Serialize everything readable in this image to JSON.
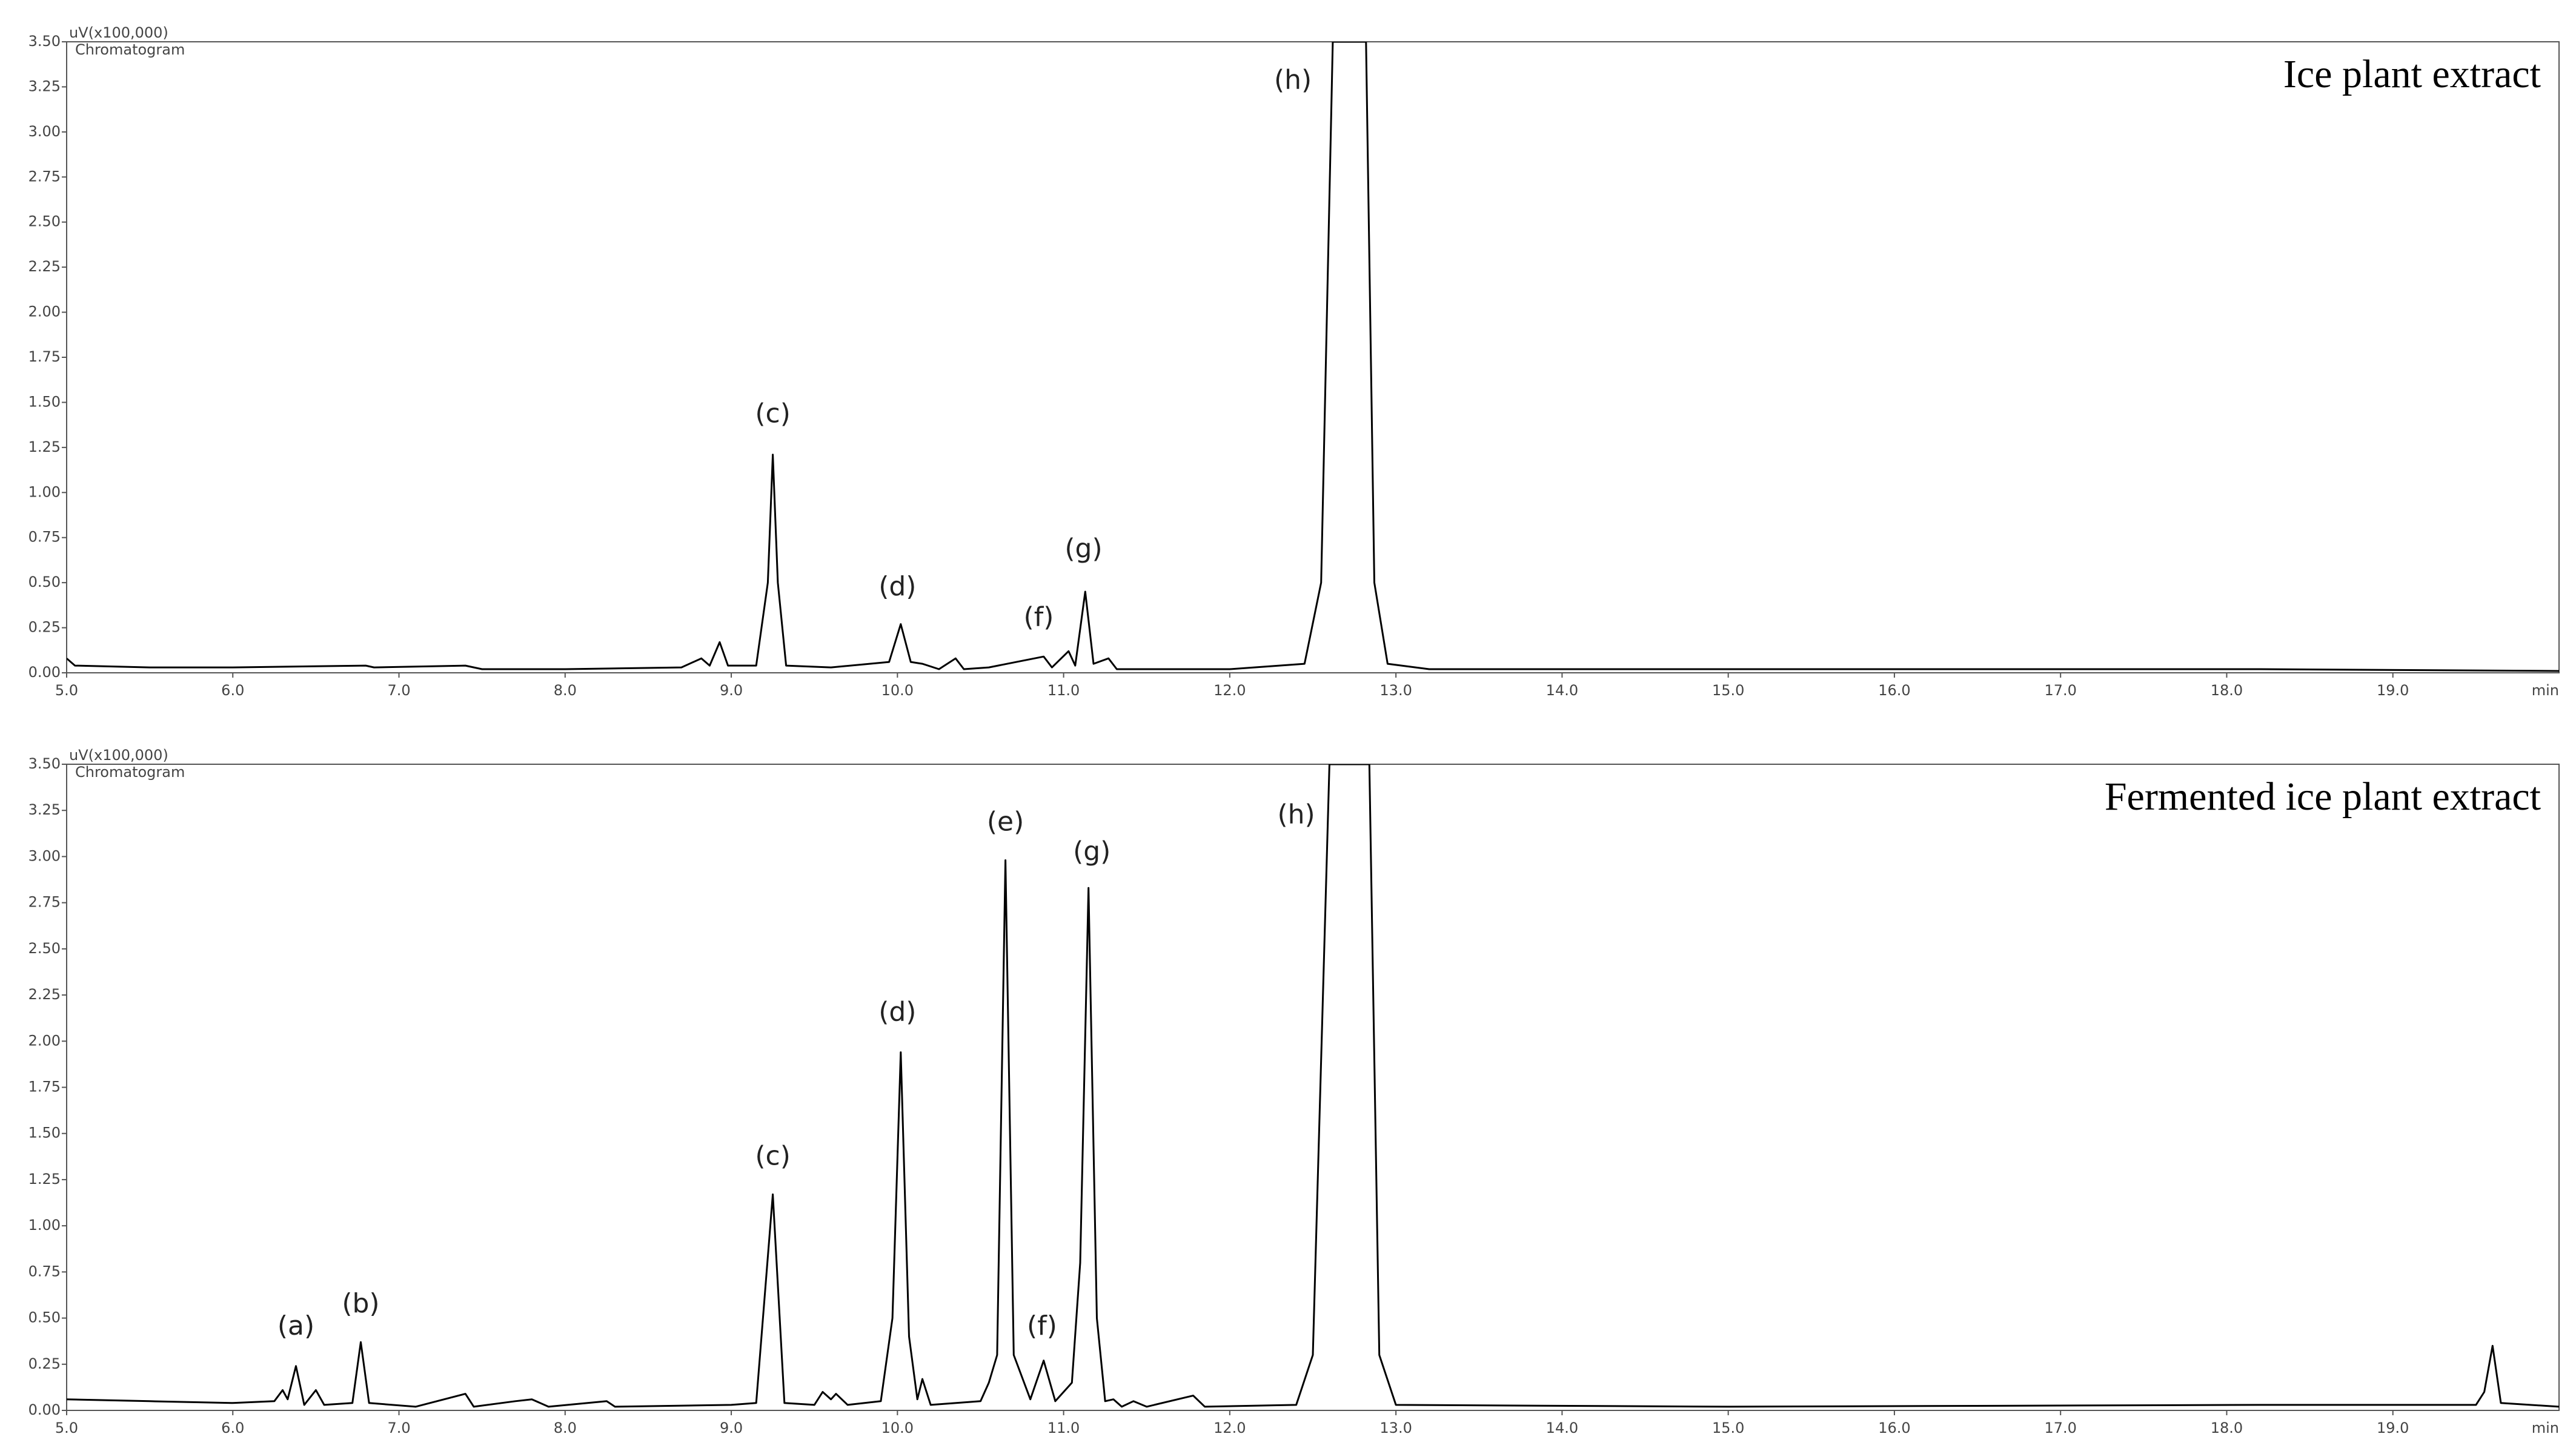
{
  "chart_data": [
    {
      "type": "line",
      "title": "Ice plant extract",
      "ylabel": "uV(x100,000)",
      "subtitle": "Chromatogram",
      "xlabel": "min",
      "color": "#000000",
      "xlim": [
        5,
        20
      ],
      "ylim": [
        0,
        3.5
      ],
      "xticks": [
        {
          "value": 5,
          "label": "5.0"
        },
        {
          "value": 6,
          "label": "6.0"
        },
        {
          "value": 7,
          "label": "7.0"
        },
        {
          "value": 8,
          "label": "8.0"
        },
        {
          "value": 9,
          "label": "9.0"
        },
        {
          "value": 10,
          "label": "10.0"
        },
        {
          "value": 11,
          "label": "11.0"
        },
        {
          "value": 12,
          "label": "12.0"
        },
        {
          "value": 13,
          "label": "13.0"
        },
        {
          "value": 14,
          "label": "14.0"
        },
        {
          "value": 15,
          "label": "15.0"
        },
        {
          "value": 16,
          "label": "16.0"
        },
        {
          "value": 17,
          "label": "17.0"
        },
        {
          "value": 18,
          "label": "18.0"
        },
        {
          "value": 19,
          "label": "19.0"
        }
      ],
      "yticks": [
        {
          "value": 0,
          "label": "0.00"
        },
        {
          "value": 0.25,
          "label": "0.25"
        },
        {
          "value": 0.5,
          "label": "0.50"
        },
        {
          "value": 0.75,
          "label": "0.75"
        },
        {
          "value": 1,
          "label": "1.00"
        },
        {
          "value": 1.25,
          "label": "1.25"
        },
        {
          "value": 1.5,
          "label": "1.50"
        },
        {
          "value": 1.75,
          "label": "1.75"
        },
        {
          "value": 2,
          "label": "2.00"
        },
        {
          "value": 2.25,
          "label": "2.25"
        },
        {
          "value": 2.5,
          "label": "2.50"
        },
        {
          "value": 2.75,
          "label": "2.75"
        },
        {
          "value": 3,
          "label": "3.00"
        },
        {
          "value": 3.25,
          "label": "3.25"
        },
        {
          "value": 3.5,
          "label": "3.50"
        }
      ],
      "x": [
        5.0,
        5.05,
        5.5,
        6.0,
        6.8,
        6.85,
        7.4,
        7.5,
        8.0,
        8.7,
        8.82,
        8.87,
        8.93,
        8.98,
        9.15,
        9.22,
        9.25,
        9.28,
        9.33,
        9.6,
        9.95,
        10.02,
        10.08,
        10.15,
        10.25,
        10.35,
        10.4,
        10.55,
        10.88,
        10.93,
        11.03,
        11.07,
        11.13,
        11.18,
        11.27,
        11.32,
        12.0,
        12.45,
        12.55,
        12.62,
        12.82,
        12.87,
        12.95,
        13.2,
        14.0,
        16.0,
        18.2,
        20.0
      ],
      "values": [
        0.08,
        0.04,
        0.03,
        0.03,
        0.04,
        0.03,
        0.04,
        0.02,
        0.02,
        0.03,
        0.08,
        0.04,
        0.17,
        0.04,
        0.04,
        0.5,
        1.21,
        0.5,
        0.04,
        0.03,
        0.06,
        0.27,
        0.06,
        0.05,
        0.02,
        0.08,
        0.02,
        0.03,
        0.09,
        0.03,
        0.12,
        0.04,
        0.45,
        0.05,
        0.08,
        0.02,
        0.02,
        0.05,
        0.5,
        3.5,
        3.5,
        0.5,
        0.05,
        0.02,
        0.02,
        0.02,
        0.02,
        0.01
      ],
      "annotations": [
        {
          "text": "(c)",
          "x": 9.25,
          "y": 1.43
        },
        {
          "text": "(d)",
          "x": 10.0,
          "y": 0.47
        },
        {
          "text": "(f)",
          "x": 10.85,
          "y": 0.3
        },
        {
          "text": "(g)",
          "x": 11.12,
          "y": 0.68
        },
        {
          "text": "(h)",
          "x": 12.38,
          "y": 3.28
        }
      ]
    },
    {
      "type": "line",
      "title": "Fermented ice plant extract",
      "ylabel": "uV(x100,000)",
      "subtitle": "Chromatogram",
      "xlabel": "min",
      "color": "#000000",
      "xlim": [
        5,
        20
      ],
      "ylim": [
        0,
        3.5
      ],
      "xticks": [
        {
          "value": 5,
          "label": "5.0"
        },
        {
          "value": 6,
          "label": "6.0"
        },
        {
          "value": 7,
          "label": "7.0"
        },
        {
          "value": 8,
          "label": "8.0"
        },
        {
          "value": 9,
          "label": "9.0"
        },
        {
          "value": 10,
          "label": "10.0"
        },
        {
          "value": 11,
          "label": "11.0"
        },
        {
          "value": 12,
          "label": "12.0"
        },
        {
          "value": 13,
          "label": "13.0"
        },
        {
          "value": 14,
          "label": "14.0"
        },
        {
          "value": 15,
          "label": "15.0"
        },
        {
          "value": 16,
          "label": "16.0"
        },
        {
          "value": 17,
          "label": "17.0"
        },
        {
          "value": 18,
          "label": "18.0"
        },
        {
          "value": 19,
          "label": "19.0"
        }
      ],
      "yticks": [
        {
          "value": 0,
          "label": "0.00"
        },
        {
          "value": 0.25,
          "label": "0.25"
        },
        {
          "value": 0.5,
          "label": "0.50"
        },
        {
          "value": 0.75,
          "label": "0.75"
        },
        {
          "value": 1,
          "label": "1.00"
        },
        {
          "value": 1.25,
          "label": "1.25"
        },
        {
          "value": 1.5,
          "label": "1.50"
        },
        {
          "value": 1.75,
          "label": "1.75"
        },
        {
          "value": 2,
          "label": "2.00"
        },
        {
          "value": 2.25,
          "label": "2.25"
        },
        {
          "value": 2.5,
          "label": "2.50"
        },
        {
          "value": 2.75,
          "label": "2.75"
        },
        {
          "value": 3,
          "label": "3.00"
        },
        {
          "value": 3.25,
          "label": "3.25"
        },
        {
          "value": 3.5,
          "label": "3.50"
        }
      ],
      "x": [
        5.0,
        5.5,
        6.0,
        6.25,
        6.3,
        6.33,
        6.38,
        6.43,
        6.5,
        6.55,
        6.72,
        6.77,
        6.82,
        7.1,
        7.4,
        7.45,
        7.7,
        7.8,
        7.9,
        8.25,
        8.3,
        9.0,
        9.15,
        9.25,
        9.32,
        9.5,
        9.55,
        9.6,
        9.63,
        9.7,
        9.9,
        9.97,
        10.02,
        10.07,
        10.12,
        10.15,
        10.2,
        10.5,
        10.55,
        10.6,
        10.65,
        10.7,
        10.8,
        10.88,
        10.95,
        11.05,
        11.1,
        11.15,
        11.2,
        11.25,
        11.3,
        11.35,
        11.42,
        11.5,
        11.78,
        11.85,
        12.4,
        12.5,
        12.6,
        12.84,
        12.9,
        13.0,
        15.0,
        18.2,
        19.5,
        19.55,
        19.6,
        19.65,
        20.0
      ],
      "values": [
        0.06,
        0.05,
        0.04,
        0.05,
        0.11,
        0.06,
        0.24,
        0.03,
        0.11,
        0.03,
        0.04,
        0.37,
        0.04,
        0.02,
        0.09,
        0.02,
        0.05,
        0.06,
        0.02,
        0.05,
        0.02,
        0.03,
        0.04,
        1.17,
        0.04,
        0.03,
        0.1,
        0.06,
        0.09,
        0.03,
        0.05,
        0.5,
        1.94,
        0.4,
        0.06,
        0.17,
        0.03,
        0.05,
        0.15,
        0.3,
        2.98,
        0.3,
        0.06,
        0.27,
        0.05,
        0.15,
        0.8,
        2.83,
        0.5,
        0.05,
        0.06,
        0.02,
        0.05,
        0.02,
        0.08,
        0.02,
        0.03,
        0.3,
        3.5,
        3.5,
        0.3,
        0.03,
        0.02,
        0.03,
        0.03,
        0.1,
        0.35,
        0.04,
        0.02
      ],
      "annotations": [
        {
          "text": "(a)",
          "x": 6.38,
          "y": 0.45
        },
        {
          "text": "(b)",
          "x": 6.77,
          "y": 0.57
        },
        {
          "text": "(c)",
          "x": 9.25,
          "y": 1.37
        },
        {
          "text": "(d)",
          "x": 10.0,
          "y": 2.15
        },
        {
          "text": "(e)",
          "x": 10.65,
          "y": 3.18
        },
        {
          "text": "(f)",
          "x": 10.87,
          "y": 0.45
        },
        {
          "text": "(g)",
          "x": 11.17,
          "y": 3.02
        },
        {
          "text": "(h)",
          "x": 12.4,
          "y": 3.22
        }
      ]
    }
  ]
}
